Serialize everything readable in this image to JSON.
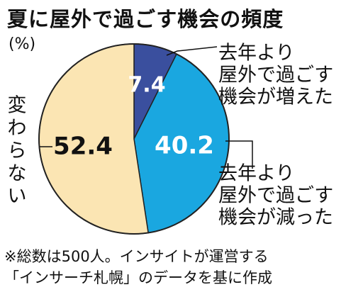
{
  "title": "夏に屋外で過ごす機会の頻度",
  "chart_data": {
    "type": "pie",
    "unit": "(%)",
    "slices": [
      {
        "label_lines": [
          "去年より",
          "屋外で過ごす",
          "機会が増えた"
        ],
        "value": 7.4,
        "value_label": "7.4",
        "color": "#3a4f9e"
      },
      {
        "label_lines": [
          "去年より",
          "屋外で過ごす",
          "機会が減った"
        ],
        "value": 40.2,
        "value_label": "40.2",
        "color": "#1aa7e0"
      },
      {
        "label_lines": [
          "変",
          "わ",
          "ら",
          "な",
          "い"
        ],
        "value": 52.4,
        "value_label": "52.4",
        "color": "#fbe5b3"
      }
    ]
  },
  "footnote": {
    "line1": "※総数は500人。インサイトが運営する",
    "line2": "「インサーチ札幌」のデータを基に作成"
  }
}
